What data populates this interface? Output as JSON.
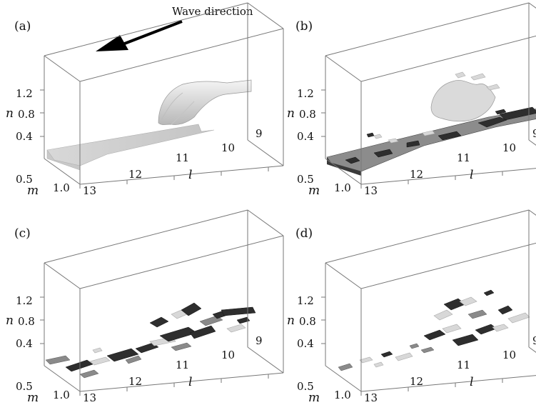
{
  "caption": "Wave direction",
  "axes": {
    "n": "n",
    "m": "m",
    "l": "l"
  },
  "ticks": {
    "n": [
      "1.2",
      "0.8",
      "0.4"
    ],
    "m": [
      "0.5",
      "1.0"
    ],
    "l": [
      "13",
      "12",
      "11",
      "10",
      "9"
    ]
  },
  "panels": [
    {
      "label": "(a)"
    },
    {
      "label": "(b)"
    },
    {
      "label": "(c)"
    },
    {
      "label": "(d)"
    }
  ]
}
